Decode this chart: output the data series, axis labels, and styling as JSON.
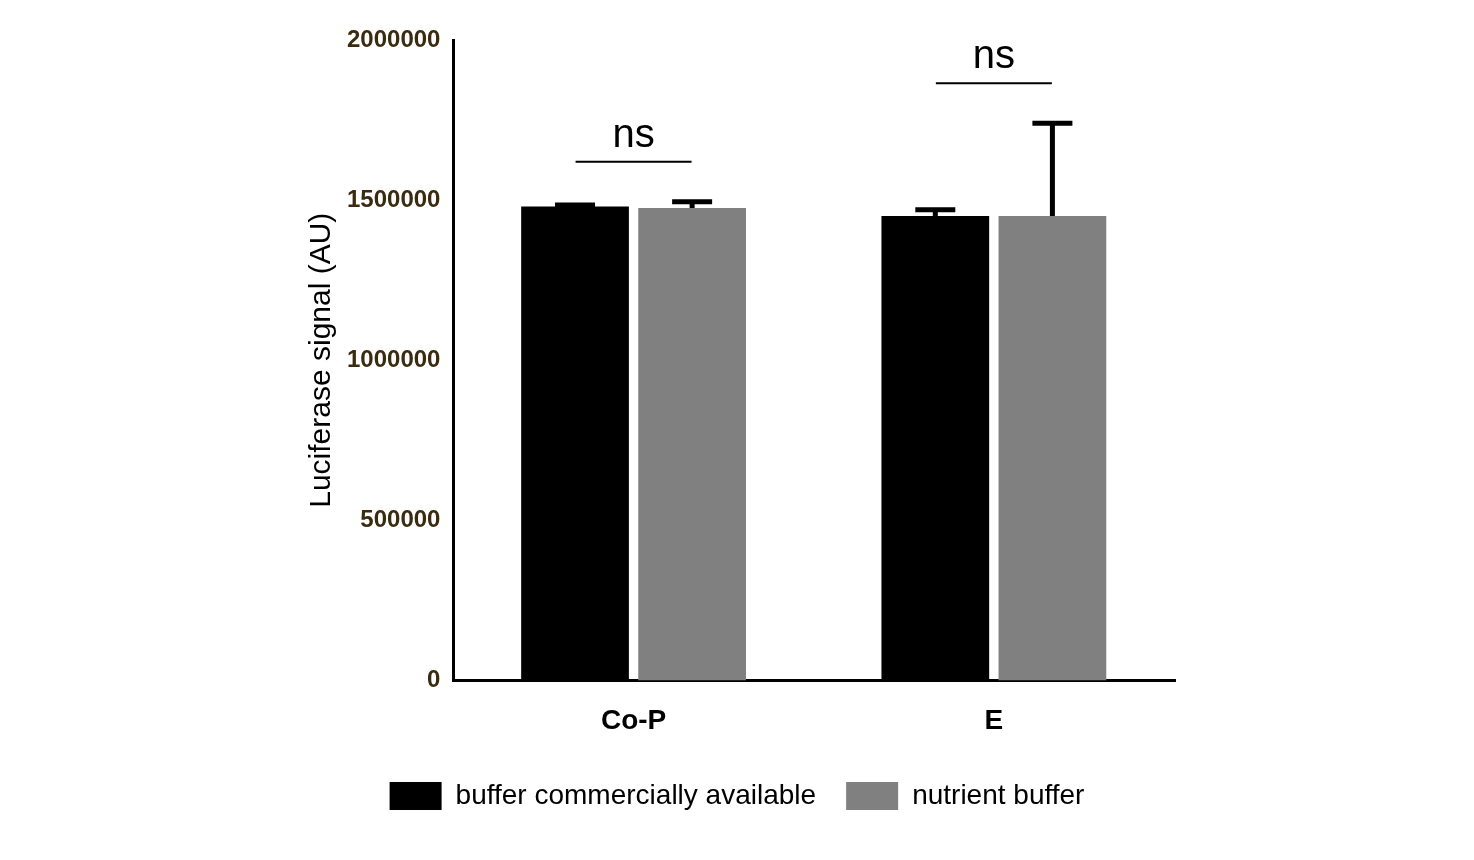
{
  "chart_data": {
    "type": "bar",
    "ylabel": "Luciferase signal (AU)",
    "categories": [
      "Co-P",
      "E"
    ],
    "series": [
      {
        "name": "buffer commercially available",
        "color": "#000000",
        "values": [
          1480000,
          1450000
        ],
        "errors": [
          [
            1480000,
            1485000
          ],
          [
            1450000,
            1470000
          ]
        ]
      },
      {
        "name": "nutrient buffer",
        "color": "#808080",
        "values": [
          1475000,
          1450000
        ],
        "errors": [
          [
            1475000,
            1495000
          ],
          [
            1450000,
            1740000
          ]
        ]
      }
    ],
    "ylim": [
      0,
      2000000
    ],
    "yticks": [
      0,
      500000,
      1000000,
      1500000,
      2000000
    ],
    "grid": false,
    "legend": "bottom",
    "annotations": [
      "ns",
      "ns"
    ]
  }
}
